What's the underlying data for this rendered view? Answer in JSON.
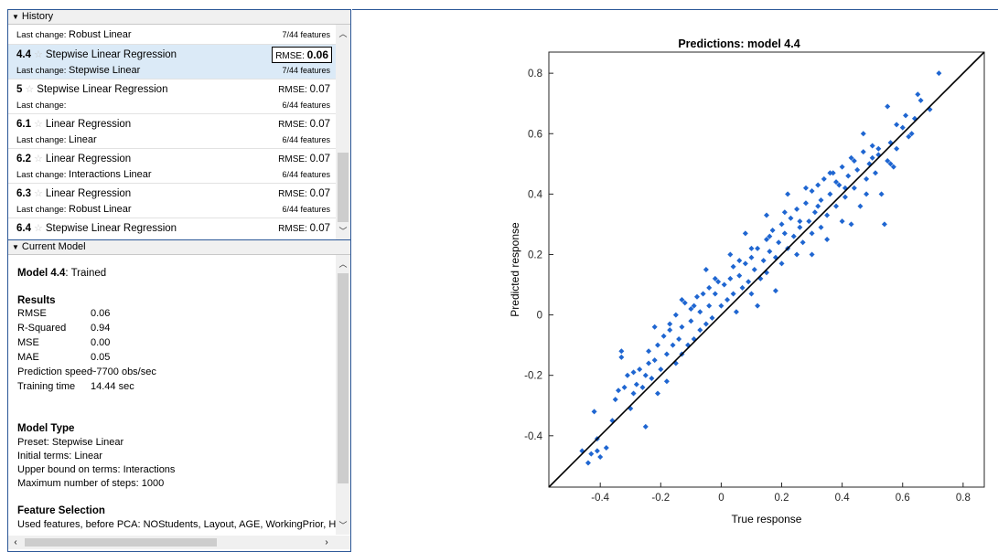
{
  "history": {
    "header": "History",
    "items": [
      {
        "num": "",
        "name": "",
        "last_change_label": "Last change:",
        "last_change": "Robust Linear",
        "rmse_label": "",
        "rmse": "",
        "features": "7/44 features"
      },
      {
        "num": "4.4",
        "name": "Stepwise Linear Regression",
        "last_change_label": "Last change:",
        "last_change": "Stepwise Linear",
        "rmse_label": "RMSE:",
        "rmse": "0.06",
        "features": "7/44 features",
        "selected": true
      },
      {
        "num": "5",
        "name": "Stepwise Linear Regression",
        "last_change_label": "Last change:",
        "last_change": "",
        "rmse_label": "RMSE:",
        "rmse": "0.07",
        "features": "6/44 features"
      },
      {
        "num": "6.1",
        "name": "Linear Regression",
        "last_change_label": "Last change:",
        "last_change": "Linear",
        "rmse_label": "RMSE:",
        "rmse": "0.07",
        "features": "6/44 features"
      },
      {
        "num": "6.2",
        "name": "Linear Regression",
        "last_change_label": "Last change:",
        "last_change": "Interactions Linear",
        "rmse_label": "RMSE:",
        "rmse": "0.07",
        "features": "6/44 features"
      },
      {
        "num": "6.3",
        "name": "Linear Regression",
        "last_change_label": "Last change:",
        "last_change": "Robust Linear",
        "rmse_label": "RMSE:",
        "rmse": "0.07",
        "features": "6/44 features"
      },
      {
        "num": "6.4",
        "name": "Stepwise Linear Regression",
        "last_change_label": "",
        "last_change": "",
        "rmse_label": "RMSE:",
        "rmse": "0.07",
        "features": ""
      }
    ]
  },
  "current_model": {
    "header": "Current Model",
    "model_label": "Model 4.4",
    "model_status": ": Trained",
    "results_heading": "Results",
    "results": [
      {
        "key": "RMSE",
        "value": "0.06"
      },
      {
        "key": "R-Squared",
        "value": "0.94"
      },
      {
        "key": "MSE",
        "value": "0.00"
      },
      {
        "key": "MAE",
        "value": "0.05"
      },
      {
        "key": "Prediction speed",
        "value": "~7700 obs/sec"
      },
      {
        "key": "Training time",
        "value": "14.44 sec"
      }
    ],
    "model_type_heading": "Model Type",
    "model_type_lines": [
      "Preset: Stepwise Linear",
      "Initial terms: Linear",
      "Upper bound on terms: Interactions",
      "Maximum number of steps: 1000"
    ],
    "feature_selection_heading": "Feature Selection",
    "feature_selection_line": "Used features, before PCA: NOStudents, Layout, AGE, WorkingPrior, H"
  },
  "chart_data": {
    "type": "scatter",
    "title": "Predictions: model 4.4",
    "xlabel": "True response",
    "ylabel": "Predicted response",
    "xlim": [
      -0.57,
      0.87
    ],
    "ylim": [
      -0.57,
      0.87
    ],
    "xticks": [
      "-0.4",
      "-0.2",
      "0",
      "0.2",
      "0.4",
      "0.6",
      "0.8"
    ],
    "yticks": [
      "-0.4",
      "-0.2",
      "0",
      "0.2",
      "0.4",
      "0.6",
      "0.8"
    ],
    "xtick_values": [
      -0.4,
      -0.2,
      0,
      0.2,
      0.4,
      0.6,
      0.8
    ],
    "ytick_values": [
      -0.4,
      -0.2,
      0,
      0.2,
      0.4,
      0.6,
      0.8
    ],
    "marker_color": "#1f66d1",
    "line_color": "#000000",
    "reference_line": {
      "from": [
        -0.57,
        -0.57
      ],
      "to": [
        0.87,
        0.87
      ]
    },
    "points": [
      [
        -0.46,
        -0.45
      ],
      [
        -0.44,
        -0.49
      ],
      [
        -0.43,
        -0.46
      ],
      [
        -0.41,
        -0.45
      ],
      [
        -0.4,
        -0.47
      ],
      [
        -0.41,
        -0.41
      ],
      [
        -0.42,
        -0.32
      ],
      [
        -0.38,
        -0.44
      ],
      [
        -0.36,
        -0.35
      ],
      [
        -0.35,
        -0.28
      ],
      [
        -0.34,
        -0.25
      ],
      [
        -0.33,
        -0.12
      ],
      [
        -0.33,
        -0.14
      ],
      [
        -0.31,
        -0.2
      ],
      [
        -0.3,
        -0.31
      ],
      [
        -0.29,
        -0.26
      ],
      [
        -0.28,
        -0.23
      ],
      [
        -0.27,
        -0.18
      ],
      [
        -0.26,
        -0.24
      ],
      [
        -0.25,
        -0.2
      ],
      [
        -0.25,
        -0.37
      ],
      [
        -0.24,
        -0.12
      ],
      [
        -0.23,
        -0.21
      ],
      [
        -0.22,
        -0.15
      ],
      [
        -0.21,
        -0.26
      ],
      [
        -0.21,
        -0.1
      ],
      [
        -0.2,
        -0.18
      ],
      [
        -0.19,
        -0.07
      ],
      [
        -0.18,
        -0.13
      ],
      [
        -0.18,
        -0.22
      ],
      [
        -0.17,
        -0.03
      ],
      [
        -0.16,
        -0.1
      ],
      [
        -0.15,
        -0.16
      ],
      [
        -0.15,
        0.0
      ],
      [
        -0.14,
        -0.08
      ],
      [
        -0.13,
        -0.13
      ],
      [
        -0.13,
        -0.04
      ],
      [
        -0.12,
        0.04
      ],
      [
        -0.11,
        -0.1
      ],
      [
        -0.1,
        -0.02
      ],
      [
        -0.1,
        0.02
      ],
      [
        -0.09,
        -0.08
      ],
      [
        -0.08,
        0.06
      ],
      [
        -0.07,
        -0.05
      ],
      [
        -0.07,
        0.01
      ],
      [
        -0.06,
        0.07
      ],
      [
        -0.05,
        -0.03
      ],
      [
        -0.04,
        0.09
      ],
      [
        -0.04,
        0.03
      ],
      [
        -0.03,
        -0.01
      ],
      [
        -0.02,
        0.07
      ],
      [
        -0.01,
        0.11
      ],
      [
        0.0,
        0.03
      ],
      [
        0.01,
        0.1
      ],
      [
        0.02,
        0.05
      ],
      [
        0.03,
        0.12
      ],
      [
        0.04,
        0.16
      ],
      [
        0.04,
        0.07
      ],
      [
        0.05,
        0.01
      ],
      [
        0.06,
        0.13
      ],
      [
        0.07,
        0.09
      ],
      [
        0.08,
        0.17
      ],
      [
        0.09,
        0.11
      ],
      [
        0.1,
        0.19
      ],
      [
        0.1,
        0.07
      ],
      [
        0.11,
        0.15
      ],
      [
        0.12,
        0.22
      ],
      [
        0.13,
        0.12
      ],
      [
        0.14,
        0.18
      ],
      [
        0.15,
        0.25
      ],
      [
        0.15,
        0.14
      ],
      [
        0.16,
        0.21
      ],
      [
        0.17,
        0.28
      ],
      [
        0.18,
        0.19
      ],
      [
        0.19,
        0.24
      ],
      [
        0.2,
        0.3
      ],
      [
        0.2,
        0.17
      ],
      [
        0.21,
        0.27
      ],
      [
        0.22,
        0.22
      ],
      [
        0.23,
        0.32
      ],
      [
        0.24,
        0.26
      ],
      [
        0.25,
        0.2
      ],
      [
        0.25,
        0.35
      ],
      [
        0.26,
        0.29
      ],
      [
        0.27,
        0.24
      ],
      [
        0.28,
        0.37
      ],
      [
        0.29,
        0.31
      ],
      [
        0.3,
        0.41
      ],
      [
        0.3,
        0.27
      ],
      [
        0.31,
        0.34
      ],
      [
        0.32,
        0.43
      ],
      [
        0.33,
        0.29
      ],
      [
        0.33,
        0.38
      ],
      [
        0.34,
        0.45
      ],
      [
        0.35,
        0.33
      ],
      [
        0.36,
        0.4
      ],
      [
        0.37,
        0.47
      ],
      [
        0.38,
        0.36
      ],
      [
        0.39,
        0.43
      ],
      [
        0.4,
        0.31
      ],
      [
        0.4,
        0.49
      ],
      [
        0.41,
        0.39
      ],
      [
        0.42,
        0.46
      ],
      [
        0.43,
        0.52
      ],
      [
        0.44,
        0.42
      ],
      [
        0.45,
        0.48
      ],
      [
        0.46,
        0.36
      ],
      [
        0.47,
        0.54
      ],
      [
        0.48,
        0.45
      ],
      [
        0.49,
        0.5
      ],
      [
        0.5,
        0.56
      ],
      [
        0.51,
        0.47
      ],
      [
        0.52,
        0.53
      ],
      [
        0.53,
        0.4
      ],
      [
        0.54,
        0.3
      ],
      [
        0.55,
        0.51
      ],
      [
        0.56,
        0.57
      ],
      [
        0.57,
        0.49
      ],
      [
        0.58,
        0.55
      ],
      [
        0.6,
        0.62
      ],
      [
        0.61,
        0.66
      ],
      [
        0.62,
        0.59
      ],
      [
        0.64,
        0.65
      ],
      [
        0.65,
        0.73
      ],
      [
        0.66,
        0.71
      ],
      [
        0.69,
        0.68
      ],
      [
        0.72,
        0.8
      ],
      [
        0.58,
        0.63
      ],
      [
        0.55,
        0.69
      ],
      [
        0.47,
        0.6
      ],
      [
        0.52,
        0.55
      ],
      [
        0.44,
        0.51
      ],
      [
        0.36,
        0.47
      ],
      [
        0.28,
        0.42
      ],
      [
        0.22,
        0.4
      ],
      [
        0.15,
        0.33
      ],
      [
        0.08,
        0.27
      ],
      [
        0.03,
        0.2
      ],
      [
        -0.05,
        0.15
      ],
      [
        -0.13,
        0.05
      ],
      [
        -0.22,
        -0.04
      ],
      [
        -0.32,
        -0.24
      ],
      [
        0.12,
        0.03
      ],
      [
        0.18,
        0.08
      ],
      [
        0.3,
        0.2
      ],
      [
        0.35,
        0.25
      ],
      [
        0.43,
        0.3
      ],
      [
        0.48,
        0.4
      ],
      [
        0.38,
        0.44
      ],
      [
        0.26,
        0.31
      ],
      [
        0.16,
        0.26
      ],
      [
        0.06,
        0.18
      ],
      [
        -0.02,
        0.12
      ],
      [
        -0.09,
        0.03
      ],
      [
        -0.17,
        -0.05
      ],
      [
        -0.24,
        -0.16
      ],
      [
        -0.29,
        -0.19
      ],
      [
        0.1,
        0.22
      ],
      [
        0.21,
        0.34
      ],
      [
        0.32,
        0.36
      ],
      [
        0.41,
        0.42
      ],
      [
        0.5,
        0.52
      ],
      [
        0.56,
        0.5
      ],
      [
        0.63,
        0.6
      ]
    ]
  }
}
